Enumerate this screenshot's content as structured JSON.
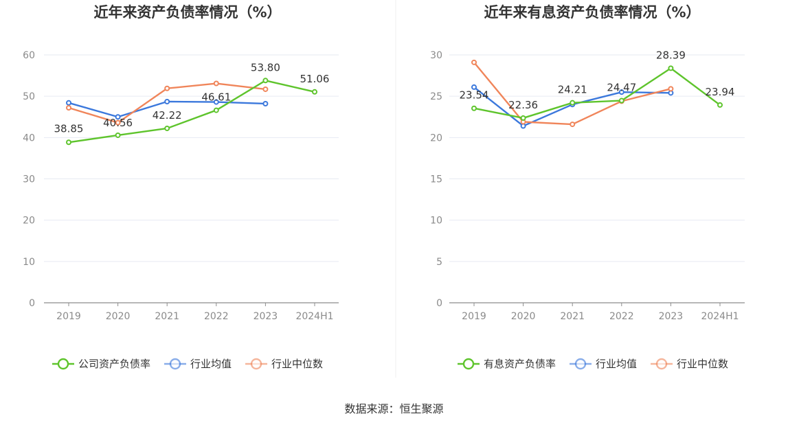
{
  "colors": {
    "company": "#5ec42c",
    "industry_avg": "#3b78dc",
    "industry_median": "#f0855a"
  },
  "source": "数据来源：恒生聚源",
  "chart_data": [
    {
      "type": "line",
      "title": "近年来资产负债率情况（%）",
      "categories": [
        "2019",
        "2020",
        "2021",
        "2022",
        "2023",
        "2024H1"
      ],
      "ylim": [
        0,
        60
      ],
      "yticks": [
        0,
        10,
        20,
        30,
        40,
        50,
        60
      ],
      "legend_position": "bottom",
      "series": [
        {
          "name": "公司资产负债率",
          "key": "company",
          "values": [
            38.85,
            40.56,
            42.22,
            46.61,
            53.8,
            51.06
          ],
          "labels": [
            "38.85",
            "40.56",
            "42.22",
            "46.61",
            "53.80",
            "51.06"
          ]
        },
        {
          "name": "行业均值",
          "key": "industry_avg",
          "values": [
            48.4,
            45.0,
            48.7,
            48.6,
            48.2,
            null
          ]
        },
        {
          "name": "行业中位数",
          "key": "industry_median",
          "values": [
            47.2,
            43.6,
            51.9,
            53.1,
            51.7,
            null
          ]
        }
      ]
    },
    {
      "type": "line",
      "title": "近年来有息资产负债率情况（%）",
      "categories": [
        "2019",
        "2020",
        "2021",
        "2022",
        "2023",
        "2024H1"
      ],
      "ylim": [
        0,
        30
      ],
      "yticks": [
        0,
        5,
        10,
        15,
        20,
        25,
        30
      ],
      "legend_position": "bottom",
      "series": [
        {
          "name": "有息资产负债率",
          "key": "company",
          "values": [
            23.54,
            22.36,
            24.21,
            24.47,
            28.39,
            23.94
          ],
          "labels": [
            "23.54",
            "22.36",
            "24.21",
            "24.47",
            "28.39",
            "23.94"
          ]
        },
        {
          "name": "行业均值",
          "key": "industry_avg",
          "values": [
            26.1,
            21.4,
            24.0,
            25.5,
            25.4,
            null
          ]
        },
        {
          "name": "行业中位数",
          "key": "industry_median",
          "values": [
            29.1,
            21.9,
            21.6,
            24.4,
            25.9,
            null
          ]
        }
      ]
    }
  ]
}
